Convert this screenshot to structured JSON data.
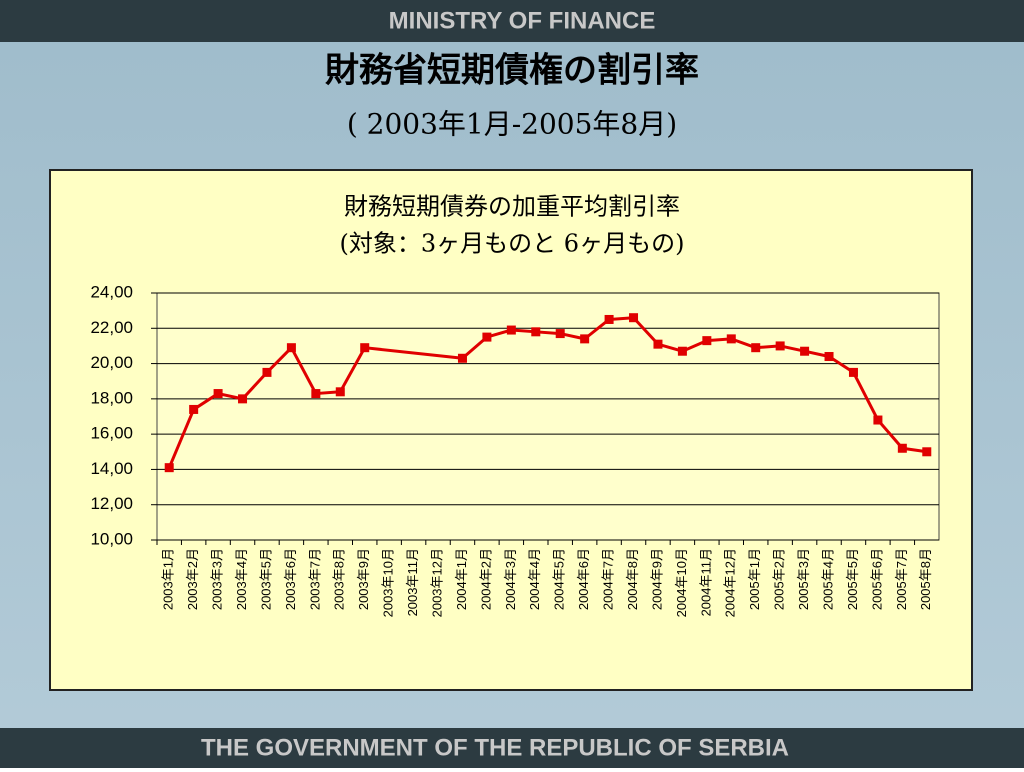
{
  "header": "MINISTRY OF FINANCE",
  "title": "財務省短期債権の割引率",
  "subtitle": "( 2003年1月-2005年8月)",
  "footer": "THE GOVERNMENT OF THE REPUBLIC OF SERBIA",
  "chart_data": {
    "type": "line",
    "title": "財務短期債券の加重平均割引率",
    "subtitle": "(対象：3ヶ月ものと 6ヶ月もの)",
    "categories": [
      "2003年1月",
      "2003年2月",
      "2003年3月",
      "2003年4月",
      "2003年5月",
      "2003年6月",
      "2003年7月",
      "2003年8月",
      "2003年9月",
      "2003年10月",
      "2003年11月",
      "2003年12月",
      "2004年1月",
      "2004年2月",
      "2004年3月",
      "2004年4月",
      "2004年5月",
      "2004年6月",
      "2004年7月",
      "2004年8月",
      "2004年9月",
      "2004年10月",
      "2004年11月",
      "2004年12月",
      "2005年1月",
      "2005年2月",
      "2005年3月",
      "2005年4月",
      "2005年5月",
      "2005年6月",
      "2005年7月",
      "2005年8月"
    ],
    "values": [
      14.1,
      17.4,
      18.3,
      18.0,
      19.5,
      20.9,
      18.3,
      18.4,
      20.9,
      null,
      null,
      null,
      20.3,
      21.5,
      21.9,
      21.8,
      21.7,
      21.4,
      22.5,
      22.6,
      21.1,
      20.7,
      21.3,
      21.4,
      20.9,
      21.0,
      20.7,
      20.4,
      19.5,
      16.8,
      15.2,
      15.0
    ],
    "color": "#e00000",
    "span_gaps": true,
    "ylim": [
      10,
      24
    ],
    "yticks": [
      {
        "value": 10,
        "label": "10,00"
      },
      {
        "value": 12,
        "label": "12,00"
      },
      {
        "value": 14,
        "label": "14,00"
      },
      {
        "value": 16,
        "label": "16,00"
      },
      {
        "value": 18,
        "label": "18,00"
      },
      {
        "value": 20,
        "label": "20,00"
      },
      {
        "value": 22,
        "label": "22,00"
      },
      {
        "value": 24,
        "label": "24,00"
      }
    ],
    "grid": true
  }
}
